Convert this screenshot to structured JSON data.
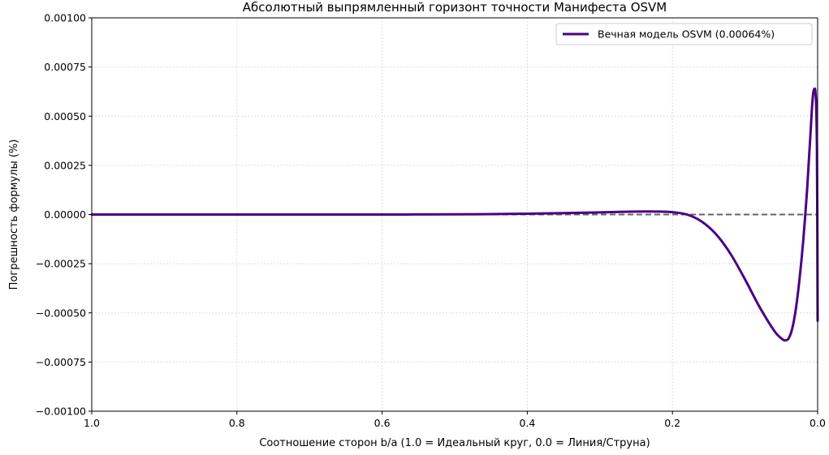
{
  "chart_data": {
    "type": "line",
    "title": "Абсолютный выпрямленный горизонт точности Манифеста OSVM",
    "xlabel": "Соотношение сторон b/a (1.0 = Идеальный круг, 0.0 = Линия/Струна)",
    "ylabel": "Погрешность формулы (%)",
    "xlim": [
      1.0,
      0.0
    ],
    "ylim": [
      -0.001,
      0.001
    ],
    "x_ticks": [
      "1.0",
      "0.8",
      "0.6",
      "0.4",
      "0.2",
      "0.0"
    ],
    "x_tick_values": [
      1.0,
      0.8,
      0.6,
      0.4,
      0.2,
      0.0
    ],
    "y_ticks": [
      "0.00100",
      "0.00075",
      "0.00050",
      "0.00025",
      "0.00000",
      "−0.00025",
      "−0.00050",
      "−0.00075",
      "−0.00100"
    ],
    "y_tick_values": [
      0.001,
      0.00075,
      0.0005,
      0.00025,
      0.0,
      -0.00025,
      -0.0005,
      -0.00075,
      -0.001
    ],
    "grid": true,
    "legend_position": "top-right",
    "reference_line": {
      "y": 0.0,
      "style": "dashed",
      "color": "#666666"
    },
    "series": [
      {
        "name": "Вечная модель OSVM (0.00064%)",
        "color": "#4b0082",
        "x": [
          1.0,
          0.9,
          0.8,
          0.7,
          0.6,
          0.5,
          0.45,
          0.4,
          0.35,
          0.3,
          0.25,
          0.22,
          0.2,
          0.18,
          0.16,
          0.14,
          0.12,
          0.1,
          0.08,
          0.06,
          0.05,
          0.045,
          0.04,
          0.035,
          0.03,
          0.025,
          0.02,
          0.015,
          0.012,
          0.01,
          0.008,
          0.006,
          0.004,
          0.003,
          0.002,
          0.001,
          0.0005,
          0.0
        ],
        "y": [
          0.0,
          0.0,
          0.0,
          0.0,
          0.0,
          1e-06,
          2e-06,
          4e-06,
          7e-06,
          1.1e-05,
          1.5e-05,
          1.5e-05,
          1.2e-05,
          0.0,
          -3.5e-05,
          -0.0001,
          -0.0002,
          -0.00033,
          -0.00047,
          -0.00059,
          -0.00063,
          -0.00064,
          -0.00063,
          -0.00058,
          -0.00048,
          -0.00033,
          -0.00014,
          0.0001,
          0.00028,
          0.0004,
          0.00053,
          0.00062,
          0.00064,
          0.00062,
          0.00055,
          0.00035,
          0.0,
          -0.00054
        ]
      }
    ]
  }
}
